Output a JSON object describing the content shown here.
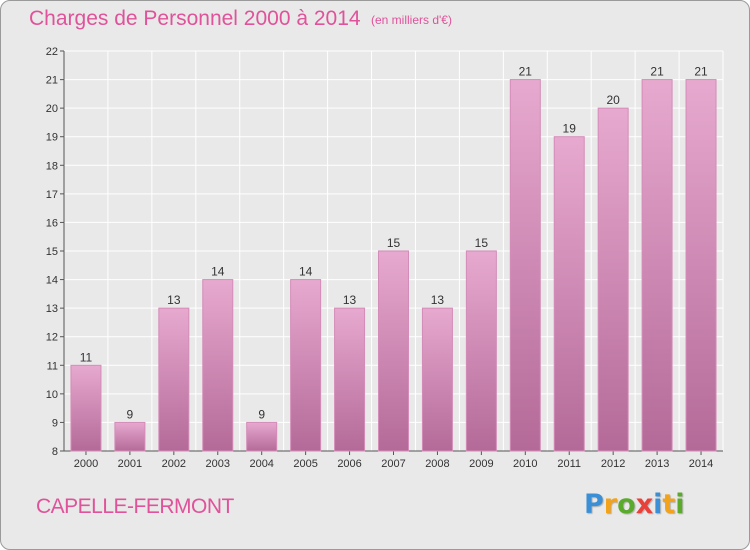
{
  "header": {
    "title": "Charges de Personnel 2000 à 2014",
    "subtitle": "(en milliers d'€)"
  },
  "footer": {
    "commune": "CAPELLE-FERMONT",
    "brand": "Proxiti",
    "brand_letters": [
      "P",
      "r",
      "o",
      "x",
      "i",
      "t",
      "i"
    ],
    "brand_colors": [
      "#3a8fd6",
      "#f2a21b",
      "#5aaa2c",
      "#e8413a",
      "#3a8fd6",
      "#f2a21b",
      "#5aaa2c"
    ]
  },
  "colors": {
    "accent": "#e0529a",
    "bar_top": "#e7a9cf",
    "bar_bottom": "#b46a98",
    "bar_edge": "#d48cb8",
    "grid": "#ffffff",
    "background": "#e9e9e9"
  },
  "chart_data": {
    "type": "bar",
    "categories": [
      "2000",
      "2001",
      "2002",
      "2003",
      "2004",
      "2005",
      "2006",
      "2007",
      "2008",
      "2009",
      "2010",
      "2011",
      "2012",
      "2013",
      "2014"
    ],
    "values": [
      11,
      9,
      13,
      14,
      9,
      14,
      13,
      15,
      13,
      15,
      21,
      19,
      20,
      21,
      21
    ],
    "data_labels": [
      "11",
      "9",
      "13",
      "14",
      "9",
      "14",
      "13",
      "15",
      "13",
      "15",
      "21",
      "19",
      "20",
      "21",
      "21"
    ],
    "y_ticks": [
      8,
      9,
      10,
      11,
      12,
      13,
      14,
      15,
      16,
      17,
      18,
      19,
      20,
      21,
      22
    ],
    "ylim": [
      8,
      22
    ],
    "grid": true,
    "xlabel": "",
    "ylabel": ""
  }
}
